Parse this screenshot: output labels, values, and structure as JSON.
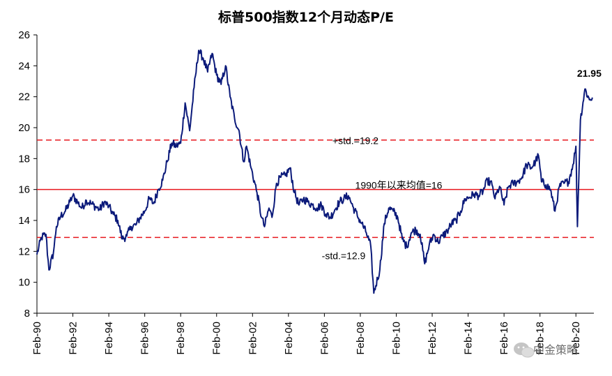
{
  "chart_data": {
    "type": "line",
    "title": "标普500指数12个月动态P/E",
    "xlabel": "",
    "ylabel": "",
    "ylim": [
      8,
      26
    ],
    "yticks": [
      "8",
      "10",
      "12",
      "14",
      "16",
      "18",
      "20",
      "22",
      "24",
      "26"
    ],
    "xlim": [
      "1990-02",
      "2021-02"
    ],
    "xticks": [
      "Feb-90",
      "Feb-92",
      "Feb-94",
      "Feb-96",
      "Feb-98",
      "Feb-00",
      "Feb-02",
      "Feb-04",
      "Feb-06",
      "Feb-08",
      "Feb-10",
      "Feb-12",
      "Feb-14",
      "Feb-16",
      "Feb-18",
      "Feb-20"
    ],
    "grid": false,
    "legend": "none",
    "colors": {
      "series": "#0b1a7a",
      "mean": "#e8171d",
      "std": "#e8171d"
    },
    "reference_lines": [
      {
        "label": "+std.=19.2",
        "value": 19.2,
        "style": "dashed"
      },
      {
        "label": "1990年以来均值=16",
        "value": 16.0,
        "style": "solid"
      },
      {
        "label": "-std.=12.9",
        "value": 12.9,
        "style": "dashed"
      }
    ],
    "last_value_label": "21.95",
    "series": [
      {
        "x": [
          "1990-02",
          "1990-05",
          "1990-08",
          "1990-10",
          "1991-01",
          "1991-03",
          "1991-06",
          "1991-09",
          "1991-12",
          "1992-02",
          "1992-05",
          "1992-08",
          "1992-11",
          "1993-02",
          "1993-05",
          "1993-08",
          "1993-11",
          "1994-02",
          "1994-05",
          "1994-08",
          "1994-11",
          "1995-02",
          "1995-05",
          "1995-08",
          "1995-11",
          "1996-02",
          "1996-05",
          "1996-08",
          "1996-11",
          "1997-02",
          "1997-05",
          "1997-08",
          "1997-11",
          "1998-02",
          "1998-05",
          "1998-08",
          "1998-11",
          "1999-02",
          "1999-05",
          "1999-08",
          "1999-11",
          "2000-02",
          "2000-05",
          "2000-08",
          "2000-11",
          "2001-02",
          "2001-05",
          "2001-08",
          "2001-10",
          "2002-01",
          "2002-05",
          "2002-08",
          "2002-10",
          "2003-01",
          "2003-03",
          "2003-06",
          "2003-09",
          "2003-12",
          "2004-03",
          "2004-06",
          "2004-09",
          "2004-12",
          "2005-03",
          "2005-06",
          "2005-09",
          "2005-12",
          "2006-03",
          "2006-06",
          "2006-09",
          "2006-12",
          "2007-03",
          "2007-06",
          "2007-09",
          "2007-12",
          "2008-03",
          "2008-06",
          "2008-09",
          "2008-11",
          "2009-03",
          "2009-06",
          "2009-09",
          "2009-12",
          "2010-03",
          "2010-06",
          "2010-09",
          "2010-12",
          "2011-03",
          "2011-06",
          "2011-09",
          "2011-12",
          "2012-03",
          "2012-06",
          "2012-09",
          "2012-12",
          "2013-03",
          "2013-06",
          "2013-09",
          "2013-12",
          "2014-03",
          "2014-06",
          "2014-09",
          "2014-12",
          "2015-03",
          "2015-06",
          "2015-08",
          "2015-11",
          "2016-02",
          "2016-05",
          "2016-08",
          "2016-11",
          "2017-02",
          "2017-05",
          "2017-08",
          "2017-11",
          "2018-01",
          "2018-03",
          "2018-06",
          "2018-09",
          "2018-12",
          "2019-03",
          "2019-06",
          "2019-09",
          "2019-12",
          "2020-02",
          "2020-03",
          "2020-05",
          "2020-08",
          "2020-11",
          "2021-01"
        ],
        "values": [
          11.8,
          12.9,
          13.1,
          10.8,
          11.9,
          13.6,
          14.3,
          14.6,
          15.2,
          15.6,
          15.2,
          14.8,
          15.3,
          15.1,
          14.9,
          14.7,
          15.2,
          14.9,
          14.4,
          14.0,
          12.8,
          13.0,
          13.6,
          13.7,
          14.2,
          14.6,
          15.4,
          15.1,
          16.0,
          16.6,
          17.8,
          19.0,
          18.8,
          19.0,
          21.6,
          19.8,
          22.6,
          25.0,
          24.5,
          23.6,
          24.8,
          23.4,
          22.8,
          24.0,
          22.0,
          20.6,
          19.8,
          17.8,
          18.8,
          17.4,
          15.8,
          14.2,
          13.6,
          14.8,
          14.2,
          16.4,
          16.8,
          16.9,
          17.4,
          15.8,
          15.0,
          15.4,
          15.2,
          15.0,
          14.8,
          15.0,
          14.4,
          14.2,
          14.7,
          15.2,
          15.4,
          15.6,
          14.9,
          14.3,
          13.8,
          13.2,
          12.3,
          9.3,
          10.8,
          13.8,
          14.8,
          14.6,
          14.2,
          12.8,
          12.3,
          13.2,
          13.4,
          13.1,
          11.2,
          12.4,
          13.1,
          12.6,
          13.0,
          13.3,
          13.8,
          14.0,
          14.6,
          15.4,
          15.5,
          15.7,
          15.6,
          15.9,
          16.6,
          16.3,
          15.4,
          16.2,
          15.0,
          16.2,
          16.4,
          16.5,
          16.8,
          17.6,
          17.4,
          17.8,
          18.2,
          16.5,
          16.3,
          16.0,
          14.6,
          16.2,
          16.4,
          16.5,
          17.6,
          18.8,
          13.6,
          20.5,
          22.5,
          21.8,
          21.95
        ]
      }
    ]
  },
  "watermark": {
    "text": "中金策略",
    "icon": "wechat-icon"
  }
}
